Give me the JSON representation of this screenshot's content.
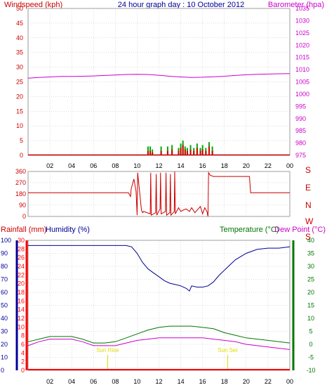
{
  "header": {
    "left_title": "Windspeed (kph)",
    "center_title": "24 hour graph day : 10 October 2012",
    "right_title": "Barometer (hpa)"
  },
  "panel3_labels": {
    "rainfall": "Rainfall (mm)",
    "humidity": "Humidity (%)",
    "temperature": "Temperature (°C)",
    "dewpoint": "Dew Point (°C)",
    "sunrise": "Sun Rise",
    "sunset": "Sun Set"
  },
  "colors": {
    "wind": "#cc0000",
    "baro": "#cc00cc",
    "direction": "#cc0000",
    "humidity": "#000099",
    "temperature": "#007700",
    "dewpoint": "#cc00cc",
    "rain": "#ff0000",
    "grid": "#bbbbbb",
    "sun": "#dddd00",
    "gust": "#00aa00"
  },
  "chart_data": [
    {
      "type": "line",
      "x_ticks": [
        "02",
        "04",
        "06",
        "08",
        "10",
        "12",
        "14",
        "16",
        "18",
        "20",
        "22",
        "00"
      ],
      "left_axis": {
        "ylim": [
          0,
          50
        ],
        "ticks": [
          "0",
          "5",
          "10",
          "15",
          "20",
          "25",
          "30",
          "35",
          "40",
          "45",
          "50"
        ]
      },
      "right_axis": {
        "ylim": [
          975,
          1035
        ],
        "ticks": [
          "975",
          "980",
          "985",
          "990",
          "995",
          "1000",
          "1005",
          "1010",
          "1015",
          "1020",
          "1025",
          "1030",
          "1035"
        ]
      },
      "barometer": {
        "x": [
          0,
          1,
          2,
          3,
          4,
          5,
          6,
          7,
          8,
          9,
          10,
          11,
          12,
          13,
          14,
          15,
          16,
          17,
          18,
          19,
          20,
          21,
          22,
          23,
          24
        ],
        "y": [
          1006.5,
          1006.8,
          1007.0,
          1007.2,
          1007.2,
          1007.3,
          1007.4,
          1007.6,
          1007.8,
          1008.0,
          1008.1,
          1008.0,
          1007.7,
          1007.3,
          1007.0,
          1006.8,
          1006.9,
          1007.1,
          1007.3,
          1007.6,
          1007.9,
          1008.1,
          1008.2,
          1008.3,
          1008.4
        ]
      },
      "wind_bars": {
        "hours": [
          11.0,
          11.2,
          11.4,
          12.2,
          12.8,
          13.2,
          13.8,
          14.0,
          14.2,
          14.4,
          14.6,
          14.9,
          15.2,
          15.5,
          15.8,
          16.0,
          16.3,
          16.6,
          16.9
        ],
        "speed": [
          1.5,
          1.5,
          1.0,
          1.5,
          1.5,
          2.0,
          1.5,
          2.5,
          3.5,
          2.0,
          1.5,
          2.0,
          1.5,
          2.5,
          1.5,
          2.0,
          1.5,
          3.0,
          1.5
        ],
        "gust": [
          3.0,
          3.0,
          2.0,
          3.0,
          3.0,
          3.5,
          2.5,
          4.0,
          5.0,
          3.0,
          2.5,
          3.5,
          2.5,
          4.0,
          2.5,
          3.5,
          2.5,
          4.5,
          3.0
        ]
      }
    },
    {
      "type": "line",
      "x_ticks": [
        "02",
        "04",
        "06",
        "08",
        "10",
        "12",
        "14",
        "16",
        "18",
        "20",
        "22",
        "00"
      ],
      "ylim": [
        0,
        360
      ],
      "left_ticks": [
        "0",
        "90",
        "180",
        "270",
        "360"
      ],
      "compass": [
        "S",
        "E",
        "N",
        "W",
        "S"
      ],
      "direction": {
        "x": [
          0,
          9.2,
          9.4,
          9.45,
          9.7,
          9.9,
          10.0,
          10.05,
          10.4,
          10.5,
          10.6,
          11.2,
          11.25,
          11.3,
          11.7,
          11.75,
          11.8,
          12.1,
          12.15,
          12.2,
          12.6,
          12.65,
          12.7,
          13.0,
          13.05,
          13.1,
          13.4,
          13.45,
          13.5,
          13.8,
          14.0,
          14.2,
          14.5,
          14.8,
          15.0,
          15.3,
          15.5,
          15.8,
          16.0,
          16.2,
          16.4,
          16.5,
          16.55,
          16.7,
          17.0,
          17.1,
          18.0,
          19.0,
          20.0,
          20.3,
          20.4,
          24.0
        ],
        "y": [
          190,
          190,
          160,
          220,
          300,
          200,
          10,
          350,
          50,
          30,
          40,
          20,
          350,
          10,
          30,
          340,
          10,
          60,
          350,
          20,
          40,
          350,
          10,
          30,
          340,
          10,
          40,
          360,
          20,
          70,
          40,
          50,
          60,
          40,
          70,
          30,
          50,
          80,
          20,
          70,
          40,
          0,
          350,
          330,
          320,
          320,
          320,
          320,
          320,
          320,
          190,
          190
        ]
      }
    },
    {
      "type": "line",
      "x_ticks": [
        "02",
        "04",
        "06",
        "08",
        "10",
        "12",
        "14",
        "16",
        "18",
        "20",
        "22",
        "00"
      ],
      "rain_axis": {
        "ylim": [
          0,
          30
        ],
        "ticks": [
          "0",
          "2",
          "4",
          "6",
          "8",
          "10",
          "12",
          "14",
          "16",
          "18",
          "20",
          "22",
          "24",
          "26",
          "28",
          "30"
        ]
      },
      "humidity_axis": {
        "ylim": [
          0,
          100
        ],
        "ticks": [
          "0",
          "10",
          "20",
          "30",
          "40",
          "50",
          "60",
          "70",
          "80",
          "90",
          "100"
        ]
      },
      "temp_axis": {
        "ylim": [
          -10,
          40
        ],
        "ticks": [
          "-10",
          "-5",
          "0",
          "5",
          "10",
          "15",
          "20",
          "25",
          "30",
          "35",
          "40"
        ]
      },
      "humidity": {
        "x": [
          0,
          1,
          2,
          3,
          4,
          5,
          6,
          7,
          8,
          9,
          9.5,
          10,
          10.5,
          11,
          11.5,
          12,
          12.5,
          13,
          13.5,
          14,
          14.5,
          14.8,
          15,
          15.5,
          16,
          16.5,
          17,
          17.5,
          18,
          18.5,
          19,
          20,
          21,
          22,
          23,
          24
        ],
        "y": [
          96,
          96,
          96,
          96,
          96,
          96,
          96,
          96,
          96,
          96,
          95,
          90,
          83,
          78,
          75,
          72,
          69,
          67,
          66,
          65,
          63,
          61,
          65,
          64,
          64,
          65,
          68,
          73,
          77,
          81,
          85,
          90,
          93,
          94,
          94,
          95
        ]
      },
      "temperature": {
        "x": [
          0,
          1,
          2,
          3,
          4,
          5,
          6,
          7,
          8,
          9,
          10,
          11,
          12,
          13,
          14,
          15,
          16,
          17,
          18,
          19,
          20,
          21,
          22,
          23,
          24
        ],
        "y": [
          1.0,
          2.0,
          3.0,
          3.0,
          3.0,
          2.0,
          0.5,
          0.5,
          1.0,
          2.5,
          4.0,
          5.5,
          6.5,
          7.0,
          7.0,
          7.0,
          6.5,
          6.0,
          4.5,
          3.5,
          2.5,
          2.0,
          1.5,
          1.0,
          0.5
        ]
      },
      "dewpoint": {
        "x": [
          0,
          1,
          2,
          3,
          4,
          5,
          6,
          7,
          8,
          9,
          10,
          11,
          12,
          13,
          14,
          15,
          16,
          17,
          18,
          19,
          20,
          21,
          22,
          23,
          24
        ],
        "y": [
          -0.5,
          1.0,
          2.0,
          2.0,
          2.0,
          1.0,
          -0.5,
          -0.5,
          -0.5,
          0.5,
          1.5,
          2.0,
          2.5,
          2.5,
          2.5,
          2.5,
          2.5,
          2.0,
          1.5,
          1.0,
          0.0,
          -0.5,
          -1.0,
          -1.5,
          -2.0
        ]
      },
      "rain": {
        "x": [
          0,
          24
        ],
        "y": [
          0,
          0
        ]
      },
      "sunrise_hour": 7.3,
      "sunset_hour": 18.3
    }
  ]
}
